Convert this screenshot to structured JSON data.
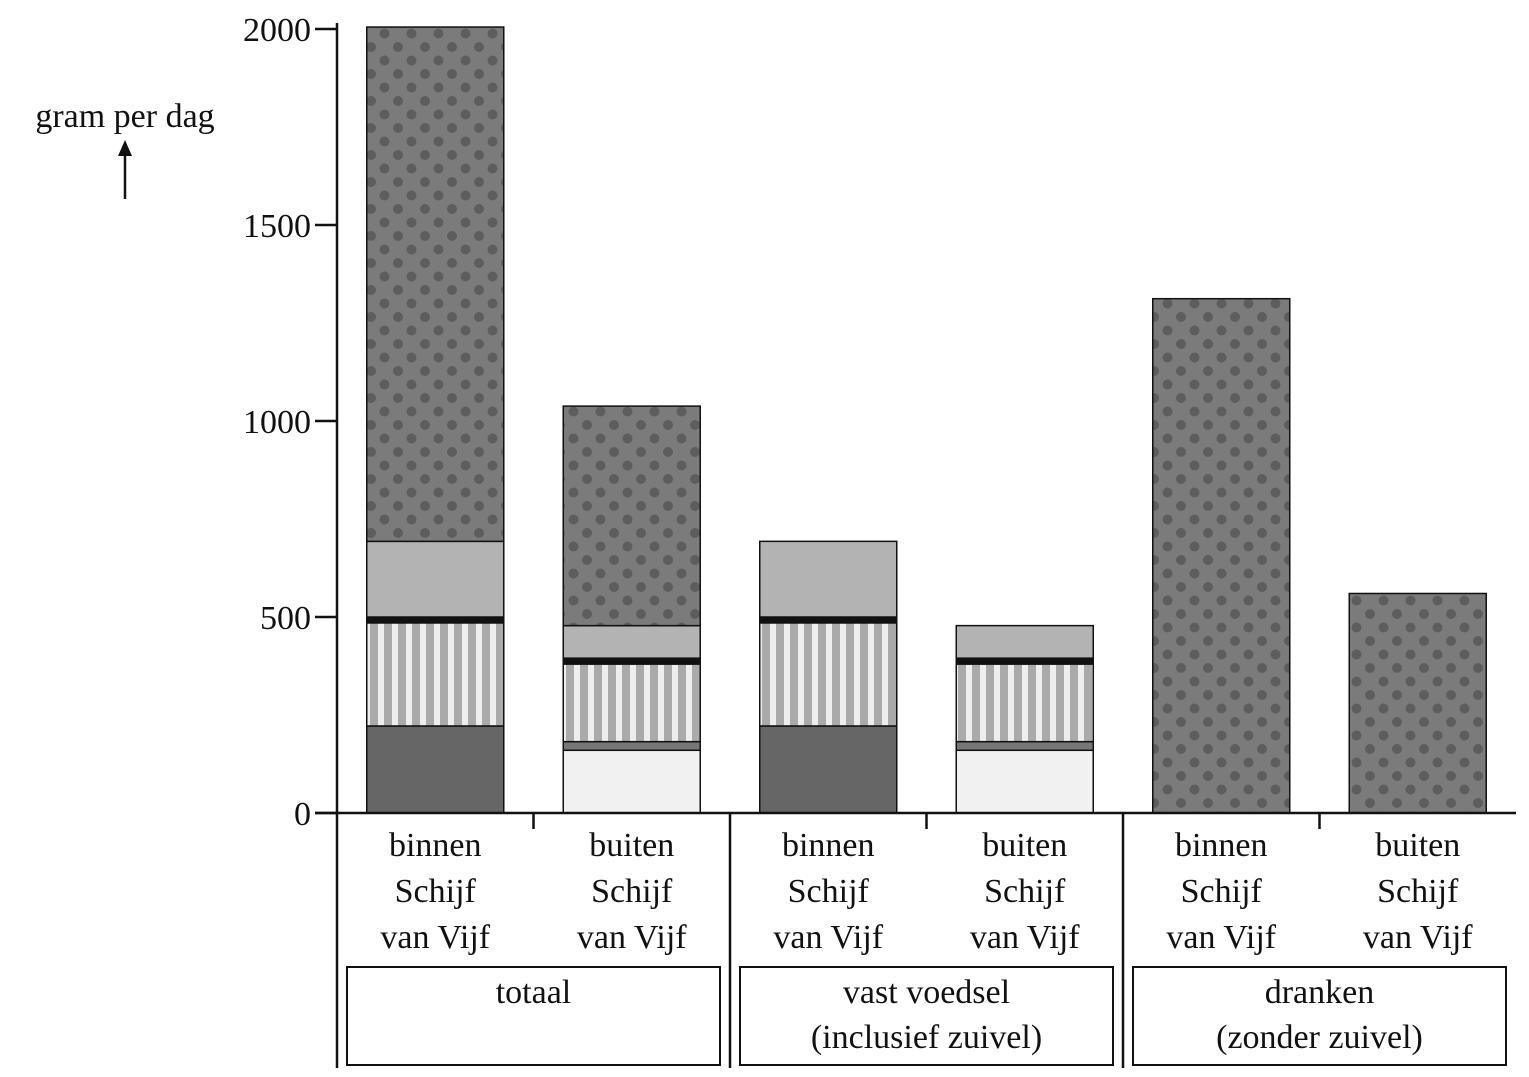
{
  "chart_data": {
    "type": "bar",
    "stacked": true,
    "ylabel": "gram per dag",
    "ylim": [
      0,
      2000
    ],
    "yticks": [
      "0",
      "500",
      "1000",
      "1500",
      "2000"
    ],
    "category_lines": [
      [
        "binnen",
        "Schijf",
        "van Vijf"
      ],
      [
        "buiten",
        "Schijf",
        "van Vijf"
      ],
      [
        "binnen",
        "Schijf",
        "van Vijf"
      ],
      [
        "buiten",
        "Schijf",
        "van Vijf"
      ],
      [
        "binnen",
        "Schijf",
        "van Vijf"
      ],
      [
        "buiten",
        "Schijf",
        "van Vijf"
      ]
    ],
    "groups": [
      {
        "lines": [
          "totaal"
        ],
        "categories": [
          0,
          1
        ]
      },
      {
        "lines": [
          "vast voedsel",
          "(inclusief zuivel)"
        ],
        "categories": [
          2,
          3
        ]
      },
      {
        "lines": [
          "dranken",
          "(zonder zuivel)"
        ],
        "categories": [
          4,
          5
        ]
      }
    ],
    "series": [
      {
        "name": "segment-1",
        "pattern": "dark-solid",
        "values": [
          222,
          0,
          222,
          0,
          0,
          0
        ]
      },
      {
        "name": "segment-2",
        "pattern": "very-light-solid",
        "values": [
          0,
          160,
          0,
          160,
          0,
          0
        ]
      },
      {
        "name": "segment-3",
        "pattern": "mid-grey-solid",
        "values": [
          0,
          22,
          0,
          22,
          0,
          0
        ]
      },
      {
        "name": "segment-4",
        "pattern": "vertical-stripes",
        "values": [
          263,
          198,
          263,
          198,
          0,
          0
        ]
      },
      {
        "name": "segment-5",
        "pattern": "black-band",
        "values": [
          15,
          15,
          15,
          15,
          0,
          0
        ]
      },
      {
        "name": "segment-6",
        "pattern": "light-grey-solid",
        "values": [
          193,
          83,
          193,
          83,
          0,
          0
        ]
      },
      {
        "name": "segment-7",
        "pattern": "dotted-dark",
        "values": [
          1312,
          560,
          0,
          0,
          1312,
          560
        ]
      }
    ],
    "colors": {
      "dark-solid": "#666666",
      "very-light-solid": "#f1f1f1",
      "mid-grey-solid": "#777777",
      "stripe-base": "#aaaaaa",
      "stripe-line": "#eeeeee",
      "black-band": "#111111",
      "light-grey-solid": "#b3b3b3",
      "dot-base": "#7b7b7b",
      "dot": "#5d5d5d",
      "outline": "#111111"
    }
  }
}
